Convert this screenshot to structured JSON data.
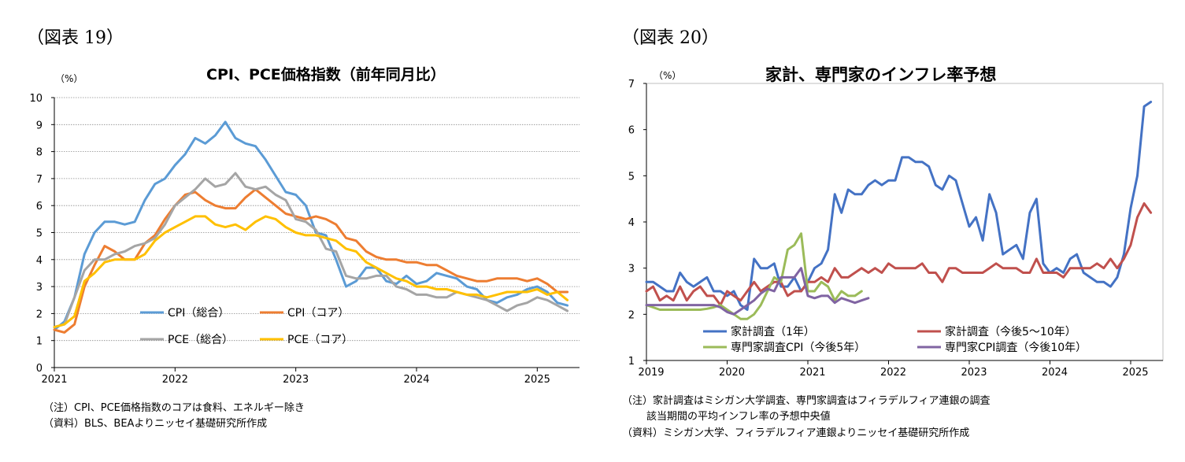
{
  "figure19": {
    "label": "（図表 19）",
    "notes": [
      "（注）CPI、PCE価格指数のコアは食料、エネルギー除き",
      "（資料）BLS、BEAよりニッセイ基礎研究所作成"
    ]
  },
  "figure20": {
    "label": "（図表 20）",
    "notes": [
      "（注）家計調査はミシガン大学調査、専門家調査はフィラデルフィア連銀の調査",
      "該当期間の平均インフレ率の予想中央値",
      "（資料）ミシガン大学、フィラデルフィア連銀よりニッセイ基礎研究所作成"
    ]
  },
  "chart_data": [
    {
      "type": "line",
      "title": "CPI、PCE価格指数（前年同月比）",
      "unit_label": "（%）",
      "xlabel": "",
      "ylabel": "",
      "x_start": 2021.0,
      "x_step": 0.08333,
      "xlim": [
        2021.0,
        2025.35
      ],
      "ylim": [
        0,
        10
      ],
      "yticks": [
        0,
        1,
        2,
        3,
        4,
        5,
        6,
        7,
        8,
        9,
        10
      ],
      "xticks": [
        2021,
        2022,
        2023,
        2024,
        2025
      ],
      "xtick_labels": [
        "2021",
        "2022",
        "2023",
        "2024",
        "2025"
      ],
      "grid": true,
      "series": [
        {
          "name": "CPI（総合）",
          "color": "#5B9BD5",
          "values": [
            1.4,
            1.7,
            2.6,
            4.2,
            5.0,
            5.4,
            5.4,
            5.3,
            5.4,
            6.2,
            6.8,
            7.0,
            7.5,
            7.9,
            8.5,
            8.3,
            8.6,
            9.1,
            8.5,
            8.3,
            8.2,
            7.7,
            7.1,
            6.5,
            6.4,
            6.0,
            5.0,
            4.9,
            4.0,
            3.0,
            3.2,
            3.7,
            3.7,
            3.2,
            3.1,
            3.4,
            3.1,
            3.2,
            3.5,
            3.4,
            3.3,
            3.0,
            2.9,
            2.5,
            2.4,
            2.6,
            2.7,
            2.9,
            3.0,
            2.8,
            2.4,
            2.3
          ]
        },
        {
          "name": "CPI（コア）",
          "color": "#ED7D31",
          "values": [
            1.4,
            1.3,
            1.6,
            3.0,
            3.8,
            4.5,
            4.3,
            4.0,
            4.0,
            4.6,
            4.9,
            5.5,
            6.0,
            6.4,
            6.5,
            6.2,
            6.0,
            5.9,
            5.9,
            6.3,
            6.6,
            6.3,
            6.0,
            5.7,
            5.6,
            5.5,
            5.6,
            5.5,
            5.3,
            4.8,
            4.7,
            4.3,
            4.1,
            4.0,
            4.0,
            3.9,
            3.9,
            3.8,
            3.8,
            3.6,
            3.4,
            3.3,
            3.2,
            3.2,
            3.3,
            3.3,
            3.3,
            3.2,
            3.3,
            3.1,
            2.8,
            2.8
          ]
        },
        {
          "name": "PCE（総合）",
          "color": "#A5A5A5",
          "values": [
            1.5,
            1.6,
            2.6,
            3.6,
            4.0,
            4.0,
            4.2,
            4.3,
            4.5,
            4.6,
            4.8,
            5.3,
            6.0,
            6.3,
            6.6,
            7.0,
            6.7,
            6.8,
            7.2,
            6.7,
            6.6,
            6.7,
            6.4,
            6.2,
            5.5,
            5.4,
            5.1,
            4.4,
            4.3,
            3.4,
            3.3,
            3.3,
            3.4,
            3.4,
            3.0,
            2.9,
            2.7,
            2.7,
            2.6,
            2.6,
            2.8,
            2.7,
            2.6,
            2.5,
            2.3,
            2.1,
            2.3,
            2.4,
            2.6,
            2.5,
            2.3,
            2.1
          ]
        },
        {
          "name": "PCE（コア）",
          "color": "#FFC000",
          "values": [
            1.5,
            1.6,
            1.9,
            3.2,
            3.5,
            3.9,
            4.0,
            4.0,
            4.0,
            4.2,
            4.7,
            5.0,
            5.2,
            5.4,
            5.6,
            5.6,
            5.3,
            5.2,
            5.3,
            5.1,
            5.4,
            5.6,
            5.5,
            5.2,
            5.0,
            4.9,
            4.9,
            4.8,
            4.7,
            4.4,
            4.3,
            3.9,
            3.7,
            3.5,
            3.3,
            3.2,
            3.0,
            3.0,
            2.9,
            2.9,
            2.8,
            2.7,
            2.7,
            2.6,
            2.7,
            2.8,
            2.8,
            2.8,
            2.9,
            2.7,
            2.8,
            2.5
          ]
        }
      ]
    },
    {
      "type": "line",
      "title": "家計、専門家のインフレ率予想",
      "unit_label": "（%）",
      "xlabel": "",
      "ylabel": "",
      "x_start": 2019.0,
      "x_step": 0.08333,
      "xlim": [
        2019.0,
        2025.4
      ],
      "ylim": [
        1,
        7
      ],
      "yticks": [
        1,
        2,
        3,
        4,
        5,
        6,
        7
      ],
      "xticks": [
        2019,
        2020,
        2021,
        2022,
        2023,
        2024,
        2025
      ],
      "xtick_labels": [
        "2019",
        "2020",
        "2021",
        "2022",
        "2023",
        "2024",
        "2025"
      ],
      "grid": false,
      "series": [
        {
          "name": "家計調査（1年）",
          "color": "#4472C4",
          "values": [
            2.7,
            2.7,
            2.6,
            2.5,
            2.5,
            2.9,
            2.7,
            2.6,
            2.7,
            2.8,
            2.5,
            2.5,
            2.4,
            2.5,
            2.2,
            2.1,
            3.2,
            3.0,
            3.0,
            3.1,
            2.6,
            2.6,
            2.8,
            2.5,
            2.7,
            3.0,
            3.1,
            3.4,
            4.6,
            4.2,
            4.7,
            4.6,
            4.6,
            4.8,
            4.9,
            4.8,
            4.9,
            4.9,
            5.4,
            5.4,
            5.3,
            5.3,
            5.2,
            4.8,
            4.7,
            5.0,
            4.9,
            4.4,
            3.9,
            4.1,
            3.6,
            4.6,
            4.2,
            3.3,
            3.4,
            3.5,
            3.2,
            4.2,
            4.5,
            3.1,
            2.9,
            3.0,
            2.9,
            3.2,
            3.3,
            2.9,
            2.8,
            2.7,
            2.7,
            2.6,
            2.8,
            3.3,
            4.3,
            5.0,
            6.5,
            6.6
          ]
        },
        {
          "name": "家計調査（今後5〜10年）",
          "color": "#C0504D",
          "values": [
            2.5,
            2.6,
            2.3,
            2.4,
            2.3,
            2.6,
            2.3,
            2.5,
            2.6,
            2.4,
            2.4,
            2.2,
            2.5,
            2.4,
            2.3,
            2.5,
            2.7,
            2.5,
            2.6,
            2.7,
            2.7,
            2.4,
            2.5,
            2.5,
            2.7,
            2.7,
            2.8,
            2.7,
            3.0,
            2.8,
            2.8,
            2.9,
            3.0,
            2.9,
            3.0,
            2.9,
            3.1,
            3.0,
            3.0,
            3.0,
            3.0,
            3.1,
            2.9,
            2.9,
            2.7,
            3.0,
            3.0,
            2.9,
            2.9,
            2.9,
            2.9,
            3.0,
            3.1,
            3.0,
            3.0,
            3.0,
            2.9,
            2.9,
            3.2,
            2.9,
            2.9,
            2.9,
            2.8,
            3.0,
            3.0,
            3.0,
            3.0,
            3.1,
            3.0,
            3.2,
            3.0,
            3.2,
            3.5,
            4.1,
            4.4,
            4.2
          ]
        },
        {
          "name": "専門家調査CPI（今後5年）",
          "color": "#9BBB59",
          "values": [
            2.2,
            2.15,
            2.1,
            2.1,
            2.1,
            2.1,
            2.1,
            2.1,
            2.1,
            2.12,
            2.15,
            2.2,
            2.1,
            2.0,
            1.9,
            1.9,
            2.0,
            2.2,
            2.5,
            2.8,
            2.7,
            3.4,
            3.5,
            3.75,
            2.5,
            2.5,
            2.7,
            2.6,
            2.3,
            2.5,
            2.4,
            2.4,
            2.5
          ]
        },
        {
          "name": "専門家CPI調査（今後10年）",
          "color": "#8064A2",
          "values": [
            2.2,
            2.2,
            2.2,
            2.2,
            2.2,
            2.2,
            2.2,
            2.2,
            2.2,
            2.2,
            2.2,
            2.15,
            2.05,
            2.0,
            2.1,
            2.2,
            2.3,
            2.45,
            2.55,
            2.5,
            2.8,
            2.8,
            2.8,
            3.0,
            2.4,
            2.35,
            2.4,
            2.4,
            2.25,
            2.35,
            2.3,
            2.25,
            2.3,
            2.35
          ]
        }
      ]
    }
  ]
}
